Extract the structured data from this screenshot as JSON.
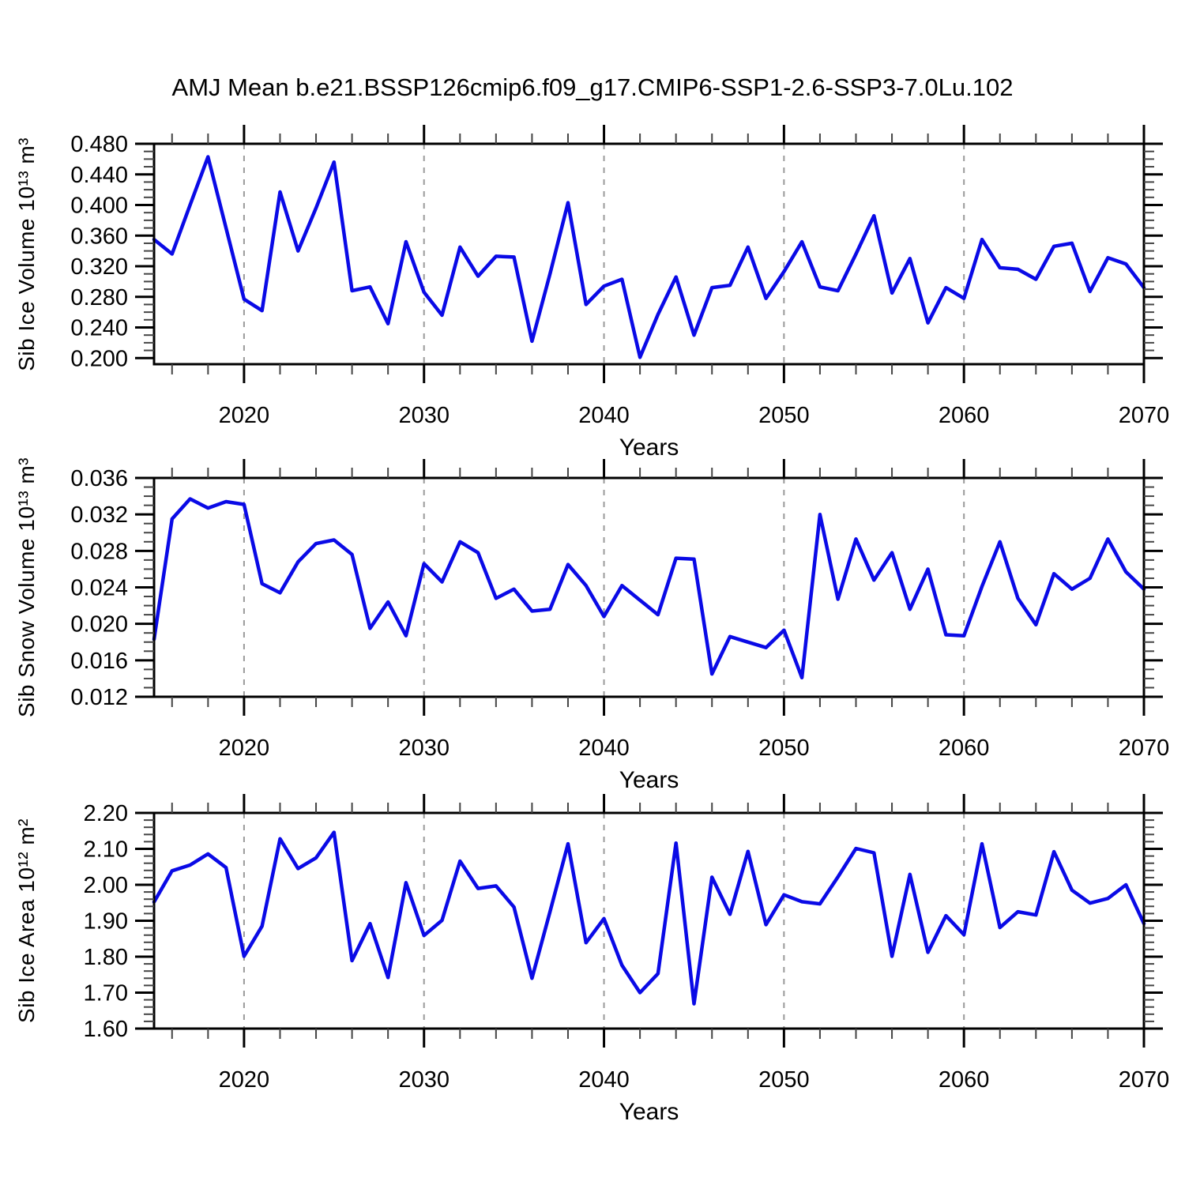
{
  "title": "AMJ Mean b.e21.BSSP126cmip6.f09_g17.CMIP6-SSP1-2.6-SSP3-7.0Lu.102",
  "colors": {
    "line": "#0a0ae6",
    "frame": "#000000",
    "grid": "#9a9a9a",
    "major_tick": "#000000",
    "minor_tick": "#444444"
  },
  "chart_data": [
    {
      "type": "line",
      "ylabel": "Sib Ice Volume 10¹³ m³",
      "xlabel": "Years",
      "legend": null,
      "grid": "vertical dashed at decade ticks",
      "x": [
        2015,
        2016,
        2017,
        2018,
        2019,
        2020,
        2021,
        2022,
        2023,
        2024,
        2025,
        2026,
        2027,
        2028,
        2029,
        2030,
        2031,
        2032,
        2033,
        2034,
        2035,
        2036,
        2037,
        2038,
        2039,
        2040,
        2041,
        2042,
        2043,
        2044,
        2045,
        2046,
        2047,
        2048,
        2049,
        2050,
        2051,
        2052,
        2053,
        2054,
        2055,
        2056,
        2057,
        2058,
        2059,
        2060,
        2061,
        2062,
        2063,
        2064,
        2065,
        2066,
        2067,
        2068,
        2069,
        2070
      ],
      "values": [
        0.355,
        0.336,
        0.4,
        0.463,
        0.37,
        0.277,
        0.262,
        0.417,
        0.34,
        0.396,
        0.456,
        0.288,
        0.293,
        0.245,
        0.352,
        0.286,
        0.256,
        0.345,
        0.307,
        0.333,
        0.332,
        0.222,
        0.31,
        0.403,
        0.27,
        0.294,
        0.303,
        0.201,
        0.257,
        0.306,
        0.23,
        0.292,
        0.295,
        0.345,
        0.278,
        0.313,
        0.352,
        0.293,
        0.288,
        0.336,
        0.386,
        0.285,
        0.33,
        0.246,
        0.292,
        0.278,
        0.355,
        0.318,
        0.316,
        0.303,
        0.346,
        0.35,
        0.287,
        0.331,
        0.323,
        0.292
      ],
      "xlim": [
        2015,
        2070
      ],
      "ylim": [
        0.192,
        0.48
      ],
      "xticks": [
        2020,
        2030,
        2040,
        2050,
        2060,
        2070
      ],
      "xtick_labels": [
        "2020",
        "2030",
        "2040",
        "2050",
        "2060",
        "2070"
      ],
      "xminor_step": 2,
      "yticks": [
        0.2,
        0.24,
        0.28,
        0.32,
        0.36,
        0.4,
        0.44,
        0.48
      ],
      "ytick_labels": [
        "0.200",
        "0.240",
        "0.280",
        "0.320",
        "0.360",
        "0.400",
        "0.440",
        "0.480"
      ],
      "yminor_step": 0.01
    },
    {
      "type": "line",
      "ylabel": "Sib Snow Volume 10¹³ m³",
      "xlabel": "Years",
      "legend": null,
      "grid": "vertical dashed at decade ticks",
      "x": [
        2015,
        2016,
        2017,
        2018,
        2019,
        2020,
        2021,
        2022,
        2023,
        2024,
        2025,
        2026,
        2027,
        2028,
        2029,
        2030,
        2031,
        2032,
        2033,
        2034,
        2035,
        2036,
        2037,
        2038,
        2039,
        2040,
        2041,
        2042,
        2043,
        2044,
        2045,
        2046,
        2047,
        2048,
        2049,
        2050,
        2051,
        2052,
        2053,
        2054,
        2055,
        2056,
        2057,
        2058,
        2059,
        2060,
        2061,
        2062,
        2063,
        2064,
        2065,
        2066,
        2067,
        2068,
        2069,
        2070
      ],
      "values": [
        0.0183,
        0.0315,
        0.0337,
        0.0327,
        0.0334,
        0.0331,
        0.0244,
        0.0234,
        0.0268,
        0.0288,
        0.0292,
        0.0276,
        0.0195,
        0.0224,
        0.0187,
        0.0266,
        0.0246,
        0.029,
        0.0278,
        0.0228,
        0.0238,
        0.0214,
        0.0216,
        0.0265,
        0.0242,
        0.0208,
        0.0242,
        0.0226,
        0.021,
        0.0272,
        0.0271,
        0.0145,
        0.0186,
        0.018,
        0.0174,
        0.0193,
        0.0141,
        0.032,
        0.0227,
        0.0293,
        0.0248,
        0.0278,
        0.0216,
        0.026,
        0.0188,
        0.0187,
        0.0241,
        0.029,
        0.0228,
        0.0199,
        0.0255,
        0.0238,
        0.025,
        0.0293,
        0.0257,
        0.0238
      ],
      "xlim": [
        2015,
        2070
      ],
      "ylim": [
        0.012,
        0.036
      ],
      "xticks": [
        2020,
        2030,
        2040,
        2050,
        2060,
        2070
      ],
      "xtick_labels": [
        "2020",
        "2030",
        "2040",
        "2050",
        "2060",
        "2070"
      ],
      "xminor_step": 2,
      "yticks": [
        0.012,
        0.016,
        0.02,
        0.024,
        0.028,
        0.032,
        0.036
      ],
      "ytick_labels": [
        "0.012",
        "0.016",
        "0.020",
        "0.024",
        "0.028",
        "0.032",
        "0.036"
      ],
      "yminor_step": 0.001
    },
    {
      "type": "line",
      "ylabel": "Sib Ice Area 10¹² m²",
      "xlabel": "Years",
      "legend": null,
      "grid": "vertical dashed at decade ticks",
      "x": [
        2015,
        2016,
        2017,
        2018,
        2019,
        2020,
        2021,
        2022,
        2023,
        2024,
        2025,
        2026,
        2027,
        2028,
        2029,
        2030,
        2031,
        2032,
        2033,
        2034,
        2035,
        2036,
        2037,
        2038,
        2039,
        2040,
        2041,
        2042,
        2043,
        2044,
        2045,
        2046,
        2047,
        2048,
        2049,
        2050,
        2051,
        2052,
        2053,
        2054,
        2055,
        2056,
        2057,
        2058,
        2059,
        2060,
        2061,
        2062,
        2063,
        2064,
        2065,
        2066,
        2067,
        2068,
        2069,
        2070
      ],
      "values": [
        1.952,
        2.039,
        2.055,
        2.086,
        2.048,
        1.801,
        1.885,
        2.128,
        2.045,
        2.075,
        2.146,
        1.789,
        1.892,
        1.742,
        2.006,
        1.859,
        1.901,
        2.066,
        1.99,
        1.997,
        1.938,
        1.74,
        1.925,
        2.114,
        1.839,
        1.906,
        1.776,
        1.7,
        1.753,
        2.116,
        1.669,
        2.021,
        1.918,
        2.093,
        1.889,
        1.972,
        1.953,
        1.947,
        2.022,
        2.101,
        2.089,
        1.801,
        2.029,
        1.812,
        1.914,
        1.861,
        2.114,
        1.881,
        1.925,
        1.916,
        2.092,
        1.985,
        1.949,
        1.962,
        2.0,
        1.892
      ],
      "xlim": [
        2015,
        2070
      ],
      "ylim": [
        1.6,
        2.2
      ],
      "xticks": [
        2020,
        2030,
        2040,
        2050,
        2060,
        2070
      ],
      "xtick_labels": [
        "2020",
        "2030",
        "2040",
        "2050",
        "2060",
        "2070"
      ],
      "xminor_step": 2,
      "yticks": [
        1.6,
        1.7,
        1.8,
        1.9,
        2.0,
        2.1,
        2.2
      ],
      "ytick_labels": [
        "1.60",
        "1.70",
        "1.80",
        "1.90",
        "2.00",
        "2.10",
        "2.20"
      ],
      "yminor_step": 0.02
    }
  ]
}
